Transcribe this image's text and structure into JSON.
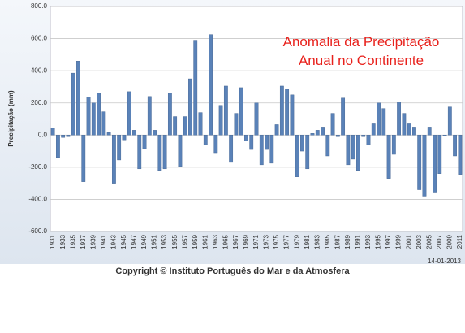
{
  "chart_data": {
    "type": "bar",
    "title": "Anomalia da Precipitação Anual no Continente",
    "y_label": "Precipitação (mm)",
    "date": "14-01-2013",
    "copyright": "Copyright ©",
    "source": "Instituto Português do Mar e da Atmosfera",
    "color": "#5a82b8",
    "grid": true,
    "ylim": [
      -600,
      800
    ],
    "yticks": [
      {
        "value": -600,
        "label": "-600.0"
      },
      {
        "value": -400,
        "label": "-400.0"
      },
      {
        "value": -200,
        "label": "-200.0"
      },
      {
        "value": 0,
        "label": "0.0"
      },
      {
        "value": 200,
        "label": "200.0"
      },
      {
        "value": 400,
        "label": "400.0"
      },
      {
        "value": 600,
        "label": "600.0"
      },
      {
        "value": 800,
        "label": "800.0"
      }
    ],
    "categories": [
      "1931",
      null,
      "1933",
      null,
      "1935",
      null,
      "1937",
      null,
      "1939",
      null,
      "1941",
      null,
      "1943",
      null,
      "1945",
      null,
      "1947",
      null,
      "1949",
      null,
      "1951",
      null,
      "1953",
      null,
      "1955",
      null,
      "1957",
      null,
      "1959",
      null,
      "1961",
      null,
      "1963",
      null,
      "1965",
      null,
      "1967",
      null,
      "1969",
      null,
      "1971",
      null,
      "1973",
      null,
      "1975",
      null,
      "1977",
      null,
      "1979",
      null,
      "1981",
      null,
      "1983",
      null,
      "1985",
      null,
      "1987",
      null,
      "1989",
      null,
      "1991",
      null,
      "1993",
      null,
      "1995",
      null,
      "1997",
      null,
      "1999",
      null,
      "2001",
      null,
      "2003",
      null,
      "2005",
      null,
      "2007",
      null,
      "2009",
      null,
      "2011"
    ],
    "values": [
      45,
      -140,
      -15,
      -10,
      385,
      460,
      -290,
      235,
      200,
      260,
      145,
      15,
      -300,
      -155,
      -30,
      270,
      30,
      -210,
      -85,
      240,
      30,
      -220,
      -210,
      260,
      115,
      -195,
      115,
      350,
      590,
      140,
      -60,
      625,
      -110,
      185,
      305,
      -170,
      135,
      295,
      -35,
      -90,
      200,
      -185,
      -90,
      -175,
      65,
      305,
      285,
      250,
      -260,
      -100,
      -210,
      10,
      30,
      50,
      -130,
      135,
      -10,
      230,
      -185,
      -150,
      -220,
      -10,
      -60,
      70,
      200,
      165,
      -270,
      -120,
      205,
      135,
      70,
      50,
      -340,
      -380,
      50,
      -360,
      -240,
      -5,
      175,
      -130,
      -245
    ]
  }
}
